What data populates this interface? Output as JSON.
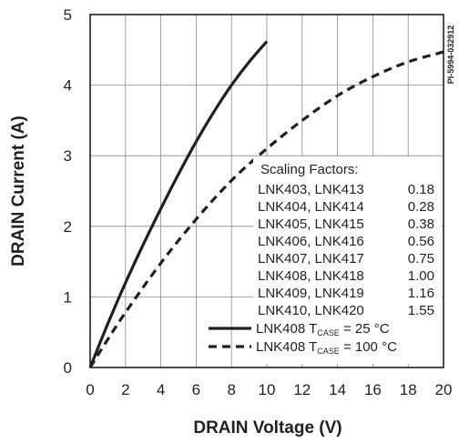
{
  "chart_data": {
    "type": "line",
    "title": "",
    "xlabel": "DRAIN Voltage (V)",
    "ylabel": "DRAIN Current (A)",
    "xlim": [
      0,
      20
    ],
    "ylim": [
      0,
      5
    ],
    "x_ticks": [
      "0",
      "2",
      "4",
      "6",
      "8",
      "10",
      "12",
      "14",
      "16",
      "18",
      "20"
    ],
    "y_ticks": [
      "0",
      "1",
      "2",
      "3",
      "4",
      "5"
    ],
    "grid": true,
    "document_id": "PI-5994-032912",
    "series": [
      {
        "name": "LNK408 T_CASE = 25 °C",
        "label_prefix": "LNK408 T",
        "label_sub": "CASE",
        "label_suffix": "= 25 °C",
        "style": "solid",
        "points": [
          [
            0,
            0
          ],
          [
            1,
            0.62
          ],
          [
            2,
            1.2
          ],
          [
            3,
            1.74
          ],
          [
            4,
            2.25
          ],
          [
            5,
            2.74
          ],
          [
            6,
            3.2
          ],
          [
            7,
            3.62
          ],
          [
            8,
            4.0
          ],
          [
            9,
            4.33
          ],
          [
            10,
            4.62
          ]
        ]
      },
      {
        "name": "LNK408 T_CASE = 100 °C",
        "label_prefix": "LNK408 T",
        "label_sub": "CASE",
        "label_suffix": "= 100 °C",
        "style": "dashed",
        "points": [
          [
            0,
            0
          ],
          [
            1,
            0.4
          ],
          [
            2,
            0.78
          ],
          [
            4,
            1.48
          ],
          [
            6,
            2.1
          ],
          [
            8,
            2.65
          ],
          [
            10,
            3.1
          ],
          [
            12,
            3.5
          ],
          [
            14,
            3.85
          ],
          [
            16,
            4.12
          ],
          [
            18,
            4.33
          ],
          [
            20,
            4.47
          ]
        ]
      }
    ],
    "scaling_factors": {
      "heading": "Scaling Factors:",
      "rows": [
        {
          "parts": "LNK403, LNK413",
          "factor": "0.18"
        },
        {
          "parts": "LNK404, LNK414",
          "factor": "0.28"
        },
        {
          "parts": "LNK405, LNK415",
          "factor": "0.38"
        },
        {
          "parts": "LNK406, LNK416",
          "factor": "0.56"
        },
        {
          "parts": "LNK407, LNK417",
          "factor": "0.75"
        },
        {
          "parts": "LNK408, LNK418",
          "factor": "1.00"
        },
        {
          "parts": "LNK409, LNK419",
          "factor": "1.16"
        },
        {
          "parts": "LNK410, LNK420",
          "factor": "1.55"
        }
      ]
    }
  }
}
